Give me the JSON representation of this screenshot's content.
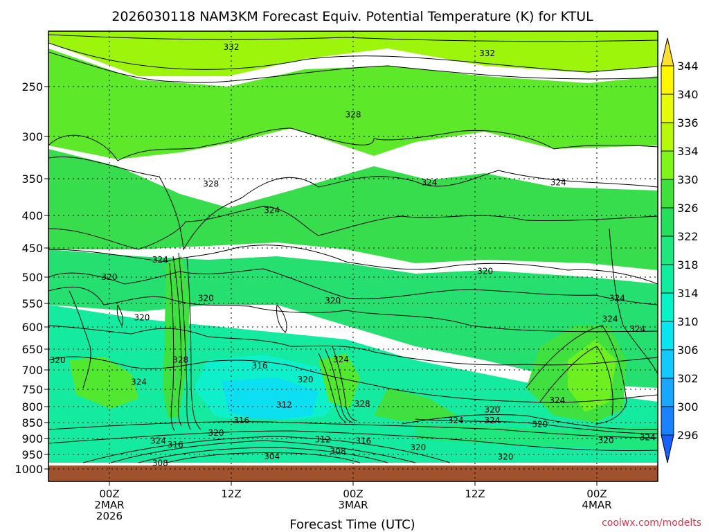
{
  "chart_data": {
    "type": "contour",
    "title": "2026030118 NAM3KM Forecast Equiv. Potential Temperature (K) for KTUL",
    "xlabel": "Forecast Time (UTC)",
    "ylabel": "",
    "y_ticks": [
      "250",
      "300",
      "350",
      "400",
      "450",
      "500",
      "550",
      "600",
      "650",
      "700",
      "750",
      "800",
      "850",
      "900",
      "950",
      "1000"
    ],
    "y_tick_values": [
      250,
      300,
      350,
      400,
      450,
      500,
      550,
      600,
      650,
      700,
      750,
      800,
      850,
      900,
      950,
      1000
    ],
    "ylim": [
      200,
      1020
    ],
    "x_ticks": [
      {
        "hours": 6,
        "lines": [
          "00Z",
          "2MAR",
          "2026"
        ]
      },
      {
        "hours": 18,
        "lines": [
          "12Z"
        ]
      },
      {
        "hours": 30,
        "lines": [
          "00Z",
          "3MAR"
        ]
      },
      {
        "hours": 42,
        "lines": [
          "12Z"
        ]
      },
      {
        "hours": 54,
        "lines": [
          "00Z",
          "4MAR"
        ]
      }
    ],
    "xlim": [
      0,
      60
    ],
    "colorbar": {
      "labels": [
        "296",
        "300",
        "302",
        "306",
        "310",
        "314",
        "318",
        "322",
        "326",
        "330",
        "334",
        "336",
        "340",
        "344"
      ],
      "colors": [
        "#1660ff",
        "#1b82ff",
        "#1aa8ff",
        "#13caff",
        "#0ae6ef",
        "#08f2c8",
        "#10eda0",
        "#1ee77e",
        "#25de5c",
        "#3fe03c",
        "#80f51a",
        "#b8f80a",
        "#e6fb08",
        "#fff700",
        "#ffe030"
      ]
    },
    "contour_labels": [
      {
        "text": "332",
        "hours": 18,
        "p": 212
      },
      {
        "text": "332",
        "hours": 43.2,
        "p": 218
      },
      {
        "text": "328",
        "hours": 30,
        "p": 278
      },
      {
        "text": "328",
        "hours": 16,
        "p": 357
      },
      {
        "text": "324",
        "hours": 22,
        "p": 393
      },
      {
        "text": "324",
        "hours": 37.5,
        "p": 355
      },
      {
        "text": "324",
        "hours": 50.2,
        "p": 355
      },
      {
        "text": "324",
        "hours": 11,
        "p": 470
      },
      {
        "text": "320",
        "hours": 6,
        "p": 500
      },
      {
        "text": "320",
        "hours": 15.5,
        "p": 540
      },
      {
        "text": "320",
        "hours": 28,
        "p": 545
      },
      {
        "text": "320",
        "hours": 43,
        "p": 490
      },
      {
        "text": "324",
        "hours": 56,
        "p": 540
      },
      {
        "text": "324",
        "hours": 55.3,
        "p": 583
      },
      {
        "text": "324",
        "hours": 58,
        "p": 605
      },
      {
        "text": "320",
        "hours": 9.2,
        "p": 580
      },
      {
        "text": "320",
        "hours": 0.9,
        "p": 677
      },
      {
        "text": "328",
        "hours": 13,
        "p": 676
      },
      {
        "text": "316",
        "hours": 20.8,
        "p": 690
      },
      {
        "text": "324",
        "hours": 28.8,
        "p": 675
      },
      {
        "text": "320",
        "hours": 25.3,
        "p": 725
      },
      {
        "text": "324",
        "hours": 8.9,
        "p": 731
      },
      {
        "text": "312",
        "hours": 23.2,
        "p": 795
      },
      {
        "text": "328",
        "hours": 30.9,
        "p": 792
      },
      {
        "text": "316",
        "hours": 19,
        "p": 843
      },
      {
        "text": "320",
        "hours": 16.5,
        "p": 883
      },
      {
        "text": "320",
        "hours": 43.7,
        "p": 810
      },
      {
        "text": "324",
        "hours": 50.1,
        "p": 782
      },
      {
        "text": "324",
        "hours": 40.1,
        "p": 843
      },
      {
        "text": "324",
        "hours": 43.7,
        "p": 843
      },
      {
        "text": "320",
        "hours": 48.4,
        "p": 855
      },
      {
        "text": "324",
        "hours": 10.8,
        "p": 908
      },
      {
        "text": "316",
        "hours": 12.5,
        "p": 920
      },
      {
        "text": "312",
        "hours": 27,
        "p": 903
      },
      {
        "text": "316",
        "hours": 31,
        "p": 908
      },
      {
        "text": "320",
        "hours": 36.4,
        "p": 928
      },
      {
        "text": "320",
        "hours": 54.9,
        "p": 905
      },
      {
        "text": "324",
        "hours": 59,
        "p": 897
      },
      {
        "text": "308",
        "hours": 11,
        "p": 980
      },
      {
        "text": "304",
        "hours": 22,
        "p": 957
      },
      {
        "text": "308",
        "hours": 28.5,
        "p": 940
      },
      {
        "text": "320",
        "hours": 45,
        "p": 958
      }
    ]
  },
  "credit": "coolwx.com/modelts"
}
